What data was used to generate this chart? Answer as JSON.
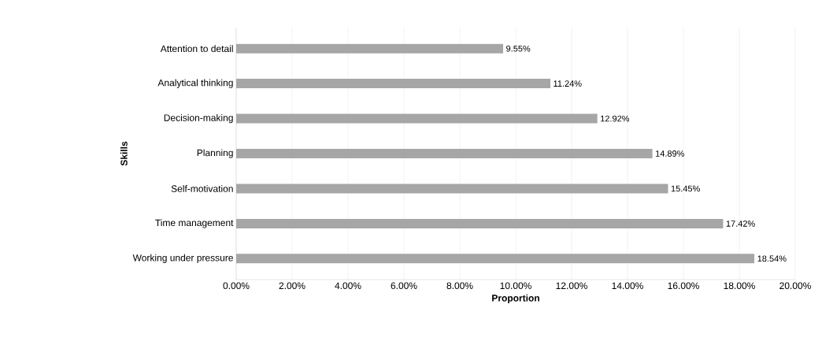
{
  "chart_data": {
    "type": "bar",
    "orientation": "horizontal",
    "xlabel": "Proportion",
    "ylabel": "Skills",
    "categories": [
      "Attention to detail",
      "Analytical thinking",
      "Decision-making",
      "Planning",
      "Self-motivation",
      "Time management",
      "Working under pressure"
    ],
    "values": [
      9.55,
      11.24,
      12.92,
      14.89,
      15.45,
      17.42,
      18.54
    ],
    "value_labels": [
      "9.55%",
      "11.24%",
      "12.92%",
      "14.89%",
      "15.45%",
      "17.42%",
      "18.54%"
    ],
    "color": "#a6a6a6",
    "xlim": [
      0,
      20
    ],
    "xticks": [
      {
        "value": 0,
        "label": "0.00%"
      },
      {
        "value": 2,
        "label": "2.00%"
      },
      {
        "value": 4,
        "label": "4.00%"
      },
      {
        "value": 6,
        "label": "6.00%"
      },
      {
        "value": 8,
        "label": "8.00%"
      },
      {
        "value": 10,
        "label": "10.00%"
      },
      {
        "value": 12,
        "label": "12.00%"
      },
      {
        "value": 14,
        "label": "14.00%"
      },
      {
        "value": 16,
        "label": "16.00%"
      },
      {
        "value": 18,
        "label": "18.00%"
      },
      {
        "value": 20,
        "label": "20.00%"
      }
    ],
    "grid": "x"
  }
}
